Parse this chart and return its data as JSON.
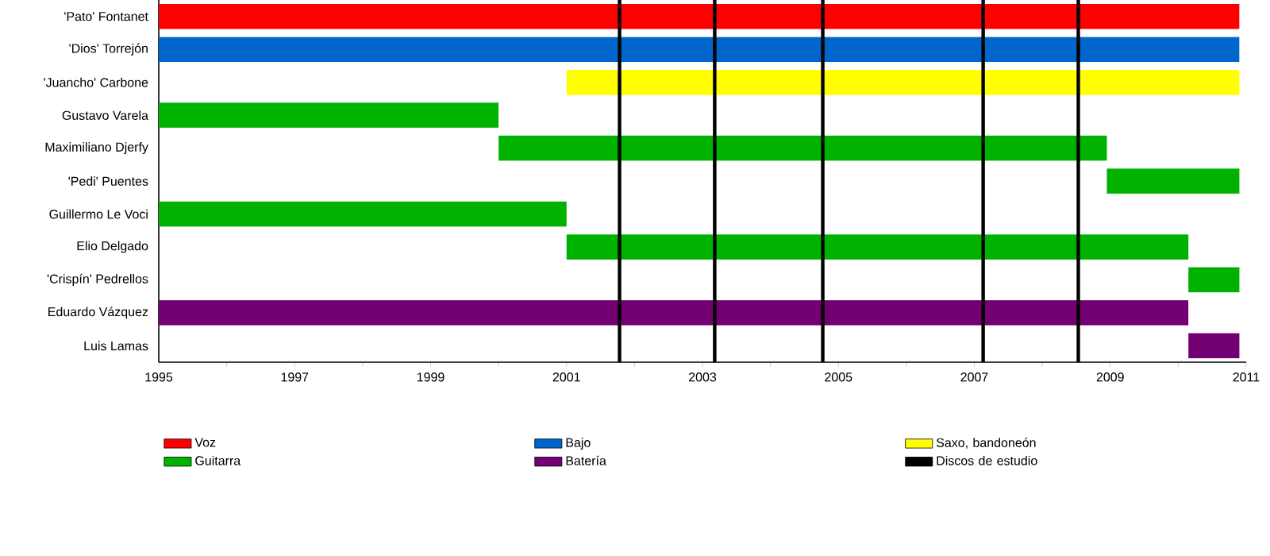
{
  "chart_data": {
    "type": "bar",
    "orientation": "horizontal",
    "legend": "bottom",
    "categories": [
      "'Pato' Fontanet",
      "'Dios' Torrejón",
      "'Juancho' Carbone",
      "Gustavo Varela",
      "Maximiliano Djerfy",
      "'Pedi' Puentes",
      "Guillermo Le Voci",
      "Elio Delgado",
      "'Crispín' Pedrellos",
      "Eduardo Vázquez",
      "Luis Lamas"
    ],
    "series": [
      {
        "name": "Voz",
        "color": "#ff0000",
        "base": [
          1995,
          null,
          null,
          null,
          null,
          null,
          null,
          null,
          null,
          null,
          null
        ],
        "values": [
          15.9,
          null,
          null,
          null,
          null,
          null,
          null,
          null,
          null,
          null,
          null
        ]
      },
      {
        "name": "Bajo",
        "color": "#0066cc",
        "base": [
          null,
          1995,
          null,
          null,
          null,
          null,
          null,
          null,
          null,
          null,
          null
        ],
        "values": [
          null,
          15.9,
          null,
          null,
          null,
          null,
          null,
          null,
          null,
          null,
          null
        ]
      },
      {
        "name": "Saxo, bandoneón",
        "color": "#ffff00",
        "base": [
          null,
          null,
          2001,
          null,
          null,
          null,
          null,
          null,
          null,
          null,
          null
        ],
        "values": [
          null,
          null,
          9.9,
          null,
          null,
          null,
          null,
          null,
          null,
          null,
          null
        ]
      },
      {
        "name": "Guitarra",
        "color": "#00b200",
        "base": [
          null,
          null,
          null,
          1995,
          2000,
          2008.95,
          1995,
          2001,
          2010.15,
          null,
          null
        ],
        "values": [
          null,
          null,
          null,
          5,
          8.95,
          1.95,
          6,
          9.15,
          0.75,
          null,
          null
        ]
      },
      {
        "name": "Batería",
        "color": "#730073",
        "base": [
          null,
          null,
          null,
          null,
          null,
          null,
          null,
          null,
          null,
          1995,
          2010.15
        ],
        "values": [
          null,
          null,
          null,
          null,
          null,
          null,
          null,
          null,
          null,
          15.15,
          0.75
        ]
      }
    ],
    "xlim": [
      1995,
      2011
    ],
    "xticks": [
      1995,
      {
        "value": 1996,
        "label": null
      },
      1997,
      {
        "value": 1998,
        "label": null
      },
      1999,
      {
        "value": 2000,
        "label": null
      },
      2001,
      {
        "value": 2002,
        "label": null
      },
      2003,
      {
        "value": 2004,
        "label": null
      },
      2005,
      {
        "value": 2006,
        "label": null
      },
      2007,
      {
        "value": 2008,
        "label": null
      },
      2009,
      {
        "value": 2010,
        "label": null
      },
      2011
    ],
    "ref_lines": [
      {
        "axis": "x",
        "value": 2001.78,
        "color": "#000000",
        "label": "Discos de estudio"
      },
      {
        "axis": "x",
        "value": 2003.18,
        "color": "#000000"
      },
      {
        "axis": "x",
        "value": 2004.77,
        "color": "#000000"
      },
      {
        "axis": "x",
        "value": 2007.13,
        "color": "#000000"
      },
      {
        "axis": "x",
        "value": 2008.53,
        "color": "#000000"
      }
    ]
  }
}
